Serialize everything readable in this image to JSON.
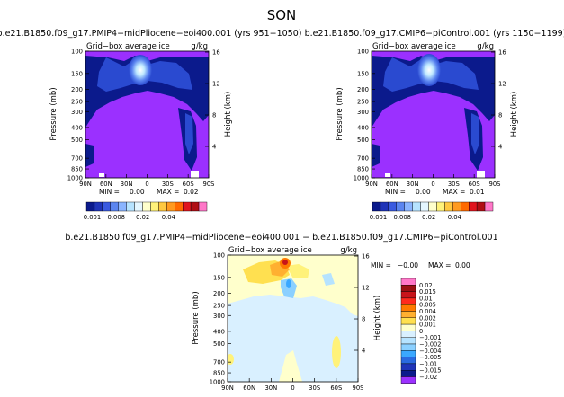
{
  "figure": {
    "title": "SON",
    "colors": {
      "purple": "#9b30ff",
      "navy": "#0b1a8c",
      "blue": "#2a4ad0",
      "midblue": "#4f7ee8",
      "lightblue": "#b6e3ff",
      "paleblue": "#d9f0ff",
      "cyan": "#8bd0ff",
      "white": "#ffffff",
      "paleyellow": "#ffffcc",
      "yellow": "#fff27a",
      "orange": "#ffb030",
      "darkorange": "#ff7a00",
      "red": "#e0141e",
      "darkred": "#9a0f12",
      "pink": "#ff77c8"
    }
  },
  "chart_data": [
    {
      "type": "heatmap",
      "panel": "top-left",
      "header": "b.e21.B1850.f09_g17.PMIP4−midPliocene−eoi400.001  (yrs 951−1050)",
      "field_label": "Grid−box average ice",
      "unit_label": "g/kg",
      "ylabel": "Pressure (mb)",
      "ylabel_right": "Height (km)",
      "y_ticks": [
        "100",
        "150",
        "200",
        "250",
        "300",
        "400",
        "500",
        "700",
        "850",
        "1000"
      ],
      "y_ticks_right": [
        "16",
        "12",
        "8",
        "4"
      ],
      "x_ticks": [
        "90N",
        "60N",
        "30N",
        "0",
        "30S",
        "60S",
        "90S"
      ],
      "stats": {
        "min_label": "MIN =",
        "min": "0.00",
        "max_label": "MAX =",
        "max": "0.02"
      }
    },
    {
      "type": "heatmap",
      "panel": "top-right",
      "header": "b.e21.B1850.f09_g17.CMIP6−piControl.001  (yrs 1150−1199)",
      "field_label": "Grid−box average ice",
      "unit_label": "g/kg",
      "ylabel": "Pressure (mb)",
      "ylabel_right": "Height (km)",
      "y_ticks": [
        "100",
        "150",
        "200",
        "250",
        "300",
        "400",
        "500",
        "700",
        "850",
        "1000"
      ],
      "y_ticks_right": [
        "16",
        "12",
        "8",
        "4"
      ],
      "x_ticks": [
        "90N",
        "60N",
        "30N",
        "0",
        "30S",
        "60S",
        "90S"
      ],
      "stats": {
        "min_label": "MIN =",
        "min": "0.00",
        "max_label": "MAX =",
        "max": "0.01"
      }
    },
    {
      "type": "heatmap",
      "panel": "bottom-difference",
      "header": "b.e21.B1850.f09_g17.PMIP4−midPliocene−eoi400.001  −  b.e21.B1850.f09_g17.CMIP6−piControl.001",
      "field_label": "Grid−box average ice",
      "unit_label": "g/kg",
      "ylabel": "Pressure (mb)",
      "ylabel_right": "Height (km)",
      "y_ticks": [
        "100",
        "150",
        "200",
        "250",
        "300",
        "400",
        "500",
        "700",
        "850",
        "1000"
      ],
      "y_ticks_right": [
        "16",
        "12",
        "8",
        "4"
      ],
      "x_ticks": [
        "90N",
        "60N",
        "30N",
        "0",
        "30S",
        "60S",
        "90S"
      ],
      "stats": {
        "min_label": "MIN =",
        "min": "−0.00",
        "max_label": "MAX =",
        "max": "0.00"
      }
    }
  ],
  "colorbar_top": {
    "labels": [
      "0.001",
      "0.008",
      "0.02",
      "0.04"
    ],
    "colors": [
      "#0b1a8c",
      "#1f34b8",
      "#3a5ae0",
      "#5b85f0",
      "#8ab4ff",
      "#b6e3ff",
      "#e4f6ff",
      "#ffffcc",
      "#fff27a",
      "#ffc840",
      "#ff9a20",
      "#ff6a00",
      "#e0141e",
      "#b00e14",
      "#ff77c8"
    ]
  },
  "colorbar_diff": {
    "labels": [
      "0.02",
      "0.015",
      "0.01",
      "0.005",
      "0.004",
      "0.002",
      "0.001",
      "0",
      "−0.001",
      "−0.002",
      "−0.004",
      "−0.005",
      "−0.01",
      "−0.015",
      "−0.02"
    ],
    "colors": [
      "#ff77c8",
      "#9a0f12",
      "#c8141a",
      "#ff2a1e",
      "#ff7a00",
      "#ffb030",
      "#ffe050",
      "#ffffcc",
      "#d9f0ff",
      "#b6e3ff",
      "#8bd0ff",
      "#3aa8ff",
      "#2a6ae0",
      "#1f34b8",
      "#0b1a8c",
      "#9b30ff"
    ]
  }
}
